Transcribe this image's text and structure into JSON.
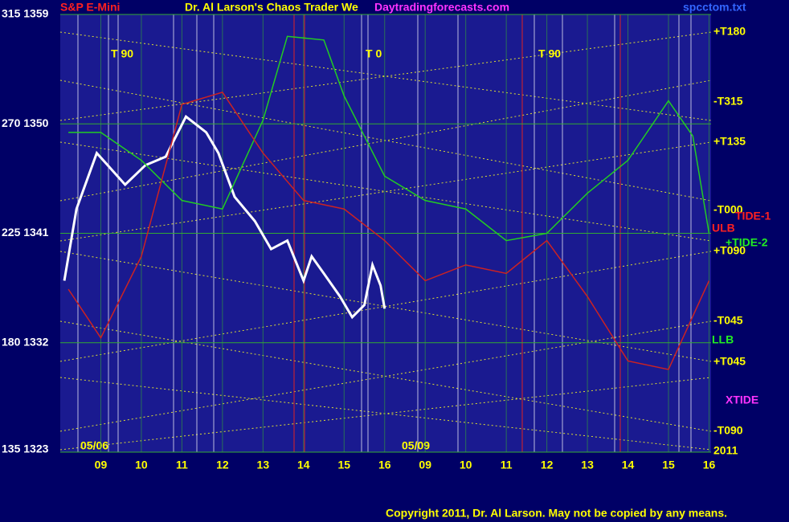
{
  "chart_data": {
    "type": "line",
    "title": "Dr. Al Larson's Chaos Trader We",
    "instrument": "S&P E-Mini",
    "site": "Daytradingforecasts.com",
    "file": "spcctom.txt",
    "ylim": [
      1323,
      1359
    ],
    "yticks": [
      {
        "value": 1323,
        "label": "135 1323"
      },
      {
        "value": 1332,
        "label": "180 1332"
      },
      {
        "value": 1341,
        "label": "225 1341"
      },
      {
        "value": 1350,
        "label": "270 1350"
      },
      {
        "value": 1359,
        "label": "315 1359"
      }
    ],
    "xlim": [
      0,
      16.05
    ],
    "xticks": [
      {
        "value": 1,
        "label": "09"
      },
      {
        "value": 2,
        "label": "10"
      },
      {
        "value": 3,
        "label": "11"
      },
      {
        "value": 4,
        "label": "12"
      },
      {
        "value": 5,
        "label": "13"
      },
      {
        "value": 6,
        "label": "14"
      },
      {
        "value": 7,
        "label": "15"
      },
      {
        "value": 8,
        "label": "16"
      },
      {
        "value": 9,
        "label": "09"
      },
      {
        "value": 10,
        "label": "10"
      },
      {
        "value": 11,
        "label": "11"
      },
      {
        "value": 12,
        "label": "12"
      },
      {
        "value": 13,
        "label": "13"
      },
      {
        "value": 14,
        "label": "14"
      },
      {
        "value": 15,
        "label": "15"
      },
      {
        "value": 16,
        "label": "16"
      }
    ],
    "grid": true,
    "series": [
      {
        "color": "#ffffff",
        "x": [
          0.1,
          0.4,
          0.9,
          1.6,
          2.1,
          2.6,
          3.1,
          3.6,
          3.9,
          4.3,
          4.8,
          5.2,
          5.6,
          6.0,
          6.2,
          6.5,
          6.9,
          7.2,
          7.5,
          7.7,
          7.9,
          8.0
        ],
        "values": [
          1337.1,
          1343.0,
          1347.6,
          1345.0,
          1346.6,
          1347.3,
          1350.6,
          1349.3,
          1347.6,
          1344.0,
          1342.0,
          1339.7,
          1340.4,
          1337.1,
          1339.1,
          1337.7,
          1335.8,
          1334.1,
          1335.1,
          1338.4,
          1336.7,
          1334.8
        ]
      },
      {
        "color": "#22cc22",
        "x": [
          0.2,
          1,
          2,
          3,
          4,
          5,
          5.6,
          6.5,
          7,
          8,
          9,
          10,
          11,
          12,
          13,
          14,
          15,
          15.6,
          16
        ],
        "values": [
          1349.3,
          1349.3,
          1347.0,
          1343.7,
          1343.0,
          1350.3,
          1357.2,
          1356.9,
          1352.3,
          1345.7,
          1343.7,
          1343.0,
          1340.4,
          1341.0,
          1344.3,
          1347.0,
          1351.9,
          1349.0,
          1341.0
        ]
      },
      {
        "color": "#cc2222",
        "x": [
          0.2,
          1,
          2,
          3,
          4,
          5,
          6,
          7,
          8,
          9,
          10,
          11,
          12,
          13,
          14,
          15,
          16
        ],
        "values": [
          1336.4,
          1332.4,
          1339.1,
          1351.6,
          1352.6,
          1347.6,
          1343.7,
          1343.0,
          1340.4,
          1337.1,
          1338.4,
          1337.7,
          1340.4,
          1335.8,
          1330.5,
          1329.8,
          1337.1
        ]
      }
    ]
  },
  "annotations": [
    {
      "text": "T  90",
      "color": "#ffff00"
    },
    {
      "text": "T  0",
      "color": "#ffff00"
    },
    {
      "text": "T  90",
      "color": "#ffff00"
    },
    {
      "text": "+T180",
      "color": "#ffff00"
    },
    {
      "text": "-T315",
      "color": "#ffff00"
    },
    {
      "text": "+T135",
      "color": "#ffff00"
    },
    {
      "text": "-T000",
      "color": "#ffff00"
    },
    {
      "text": "+T090",
      "color": "#ffff00"
    },
    {
      "text": "-T045",
      "color": "#ffff00"
    },
    {
      "text": "+T045",
      "color": "#ffff00"
    },
    {
      "text": "-T090",
      "color": "#ffff00"
    },
    {
      "text": "TIDE-1",
      "color": "#ff2020"
    },
    {
      "text": "ULB",
      "color": "#ff2020"
    },
    {
      "text": "+TIDE-2",
      "color": "#22ee22"
    },
    {
      "text": "LLB",
      "color": "#22ee22"
    },
    {
      "text": "XTIDE",
      "color": "#ff33ff"
    }
  ],
  "footer": {
    "left_date": "05/06",
    "right_date": "05/09",
    "year": "2011",
    "copyright": "Copyright 2011, Dr. Al Larson. May not be copied by any means."
  }
}
